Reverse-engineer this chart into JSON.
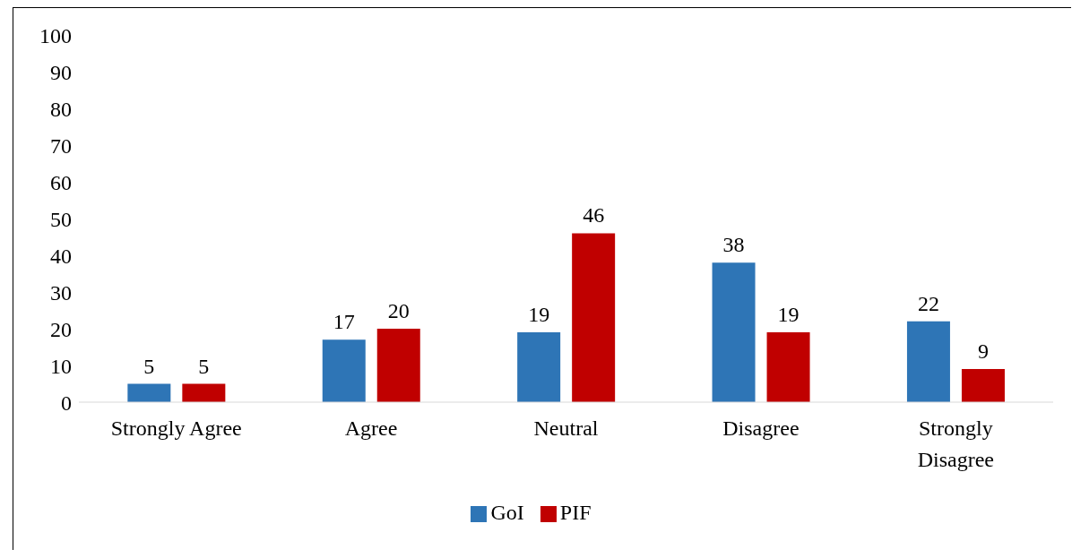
{
  "chart_data": {
    "type": "bar",
    "categories": [
      "Strongly Agree",
      "Agree",
      "Neutral",
      "Disagree",
      "Strongly Disagree"
    ],
    "series": [
      {
        "name": "GoI",
        "color": "#2e75b6",
        "values": [
          5,
          17,
          19,
          38,
          22
        ]
      },
      {
        "name": "PIF",
        "color": "#c00000",
        "values": [
          5,
          20,
          46,
          19,
          9
        ]
      }
    ],
    "ylim": [
      0,
      100
    ],
    "yticks": [
      0,
      10,
      20,
      30,
      40,
      50,
      60,
      70,
      80,
      90,
      100
    ],
    "grid": false,
    "legend": "bottom",
    "data_labels": true
  }
}
